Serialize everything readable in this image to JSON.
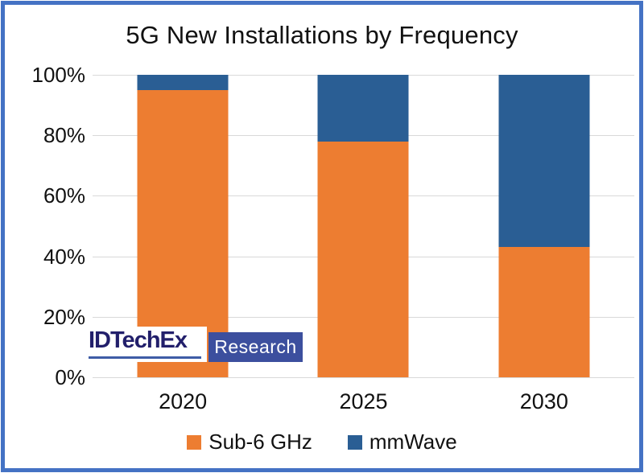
{
  "frame": {
    "border_color": "#4472C4",
    "background": "#FFFFFF"
  },
  "chart_data": {
    "type": "bar",
    "stacked": true,
    "percent_stacked": true,
    "title": "5G New Installations by Frequency",
    "categories": [
      "2020",
      "2025",
      "2030"
    ],
    "series": [
      {
        "name": "Sub-6 GHz",
        "color": "#ED7D31",
        "values": [
          95,
          78,
          43
        ]
      },
      {
        "name": "mmWave",
        "color": "#2A5E94",
        "values": [
          5,
          22,
          57
        ]
      }
    ],
    "xlabel": "",
    "ylabel": "",
    "y_axis": {
      "min": 0,
      "max": 100,
      "unit": "%",
      "ticks": [
        "0%",
        "20%",
        "40%",
        "60%",
        "80%",
        "100%"
      ]
    },
    "grid": true,
    "gridline_color": "#D9D9D9",
    "legend_position": "bottom"
  },
  "logo": {
    "brand": "IDTechEx",
    "suffix": "Research",
    "brand_color": "#221F6B",
    "underline_color": "#3E5CA6",
    "suffix_bg": "#3C4F9E",
    "suffix_text_color": "#FFFFFF"
  }
}
